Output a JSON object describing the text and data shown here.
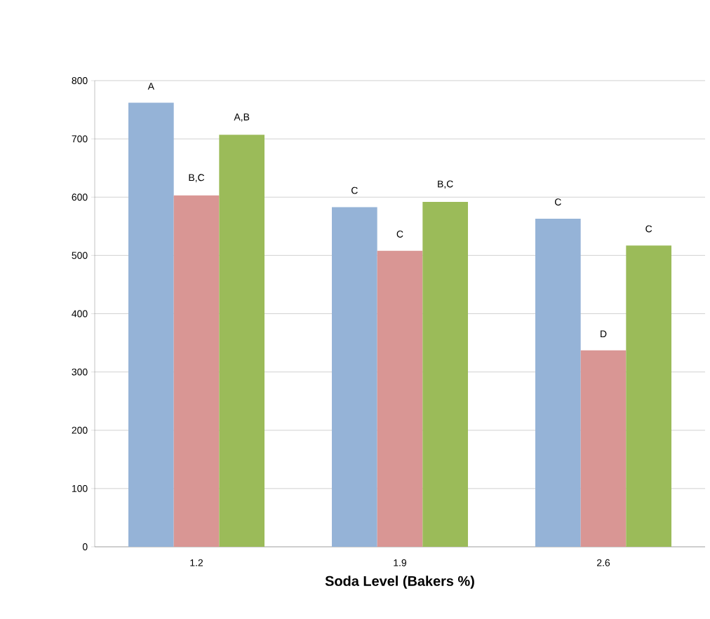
{
  "chart_data": {
    "type": "bar",
    "xlabel": "Soda Level (Bakers %)",
    "categories": [
      "1.2",
      "1.9",
      "2.6"
    ],
    "series": [
      {
        "color": "#95b3d7",
        "values": [
          762,
          583,
          563
        ],
        "value_labels": [
          "A",
          "C",
          "C"
        ]
      },
      {
        "color": "#d99694",
        "values": [
          603,
          508,
          337
        ],
        "value_labels": [
          "B,C",
          "C",
          "D"
        ]
      },
      {
        "color": "#9bbb59",
        "values": [
          707,
          592,
          517
        ],
        "value_labels": [
          "A,B",
          "B,C",
          "C"
        ]
      }
    ],
    "ylim": [
      0,
      800
    ],
    "yticks": [
      0,
      100,
      200,
      300,
      400,
      500,
      600,
      700,
      800
    ],
    "grid": "y"
  }
}
